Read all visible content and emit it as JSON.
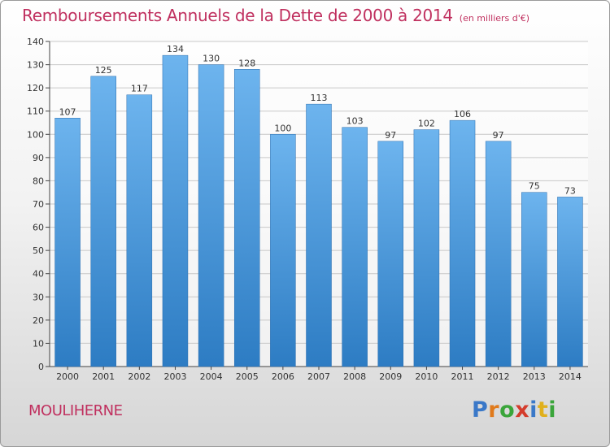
{
  "header": {
    "title": "Remboursements Annuels de la Dette de 2000 à 2014",
    "unit_note": "(en milliers d'€)"
  },
  "footer": {
    "town": "MOULIHERNE",
    "logo_text": "Proxiti"
  },
  "colors": {
    "title": "#c0305f",
    "bar_top": "#6db4ee",
    "bar_bottom": "#2d7cc3",
    "grid": "#c8c8c8"
  },
  "chart_data": {
    "type": "bar",
    "title": "Remboursements Annuels de la Dette de 2000 à 2014",
    "subtitle": "(en milliers d'€)",
    "xlabel": "",
    "ylabel": "",
    "categories": [
      "2000",
      "2001",
      "2002",
      "2003",
      "2004",
      "2005",
      "2006",
      "2007",
      "2008",
      "2009",
      "2010",
      "2011",
      "2012",
      "2013",
      "2014"
    ],
    "values": [
      107,
      125,
      117,
      134,
      130,
      128,
      100,
      113,
      103,
      97,
      102,
      106,
      97,
      75,
      73
    ],
    "ylim": [
      0,
      140
    ],
    "yticks": [
      0,
      10,
      20,
      30,
      40,
      50,
      60,
      70,
      80,
      90,
      100,
      110,
      120,
      130,
      140
    ],
    "grid": true,
    "data_labels": true
  }
}
